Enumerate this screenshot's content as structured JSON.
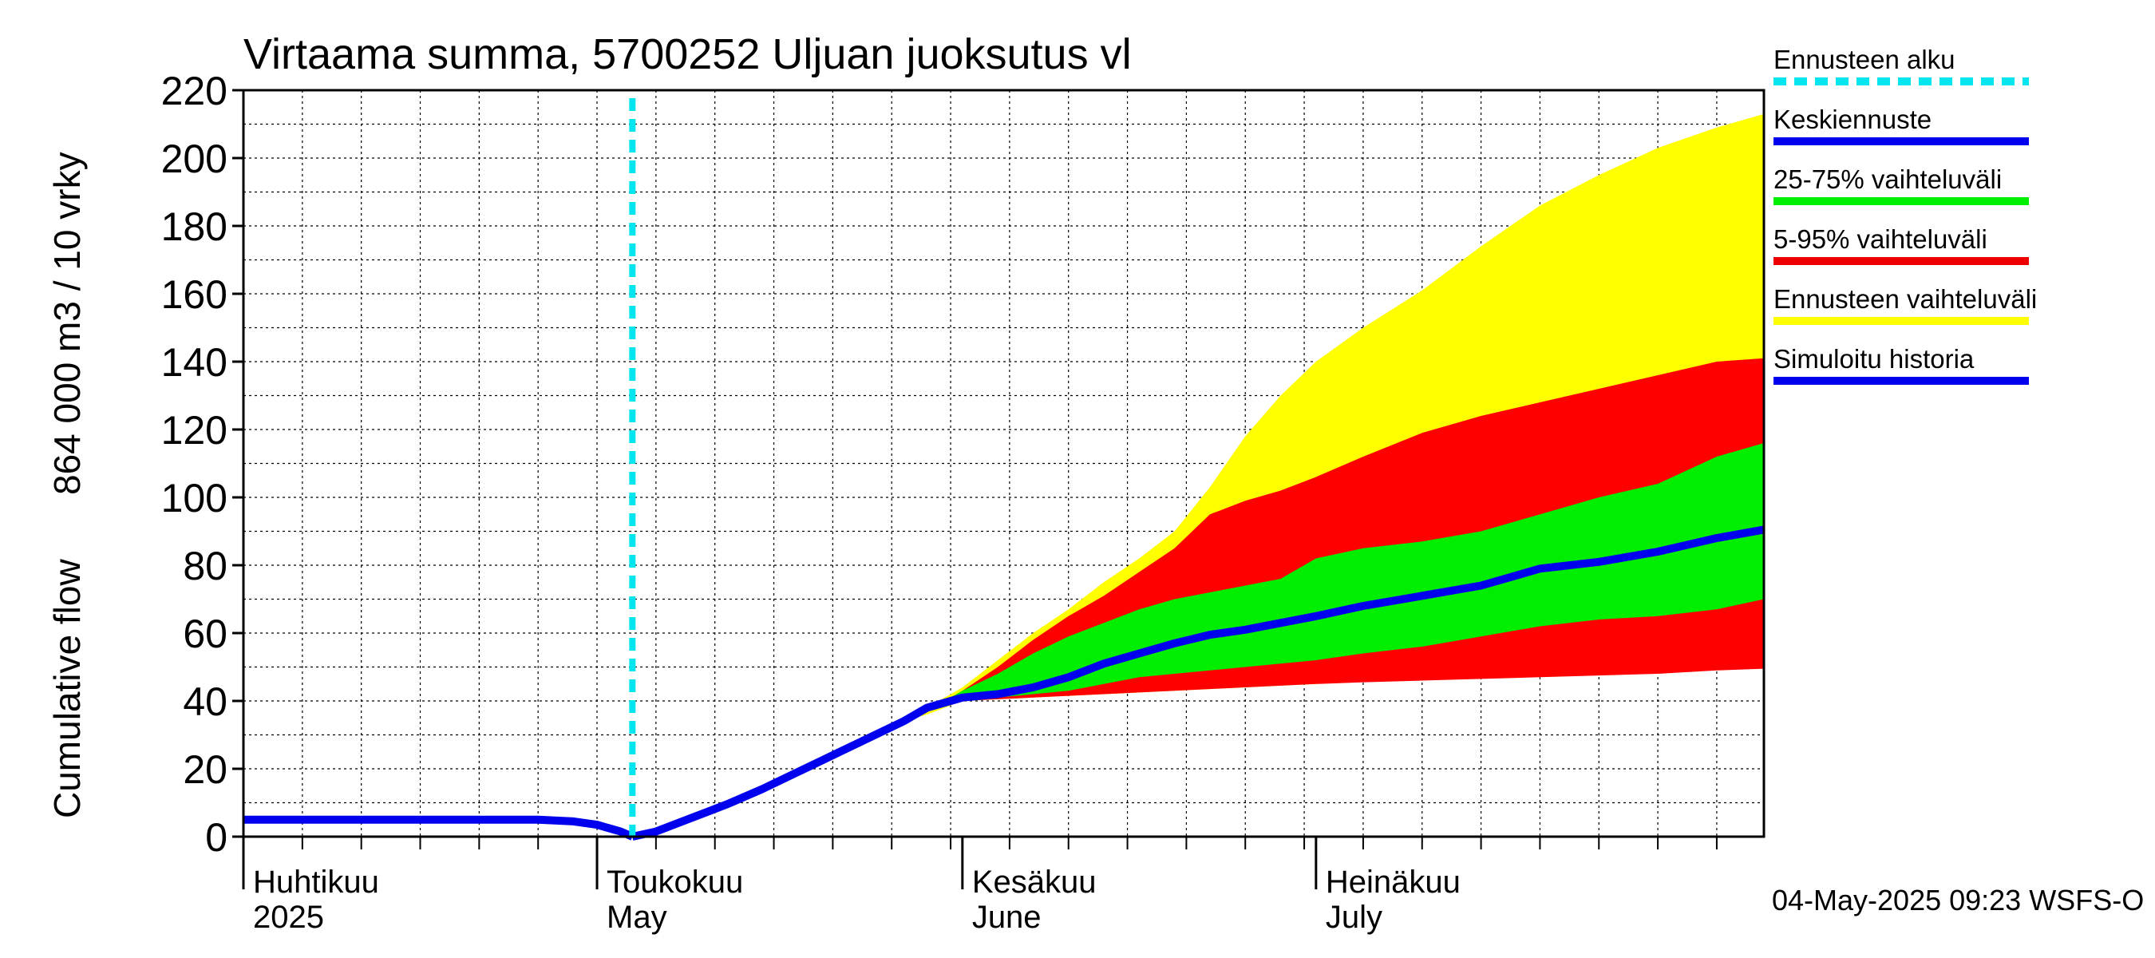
{
  "chart_data": {
    "type": "area",
    "title": "Virtaama summa, 5700252 Uljuan juoksutus vl",
    "ylabel_line1": "864 000 m3 / 10 vrky",
    "ylabel_line2": "Cumulative flow",
    "ylim": [
      0,
      220
    ],
    "xlim_days": [
      0,
      129
    ],
    "yticks": [
      0,
      20,
      40,
      60,
      80,
      100,
      120,
      140,
      160,
      180,
      200,
      220
    ],
    "grid": true,
    "forecast_start_day": 33,
    "months": [
      {
        "fi": "Huhtikuu",
        "en": "2025",
        "day": 0
      },
      {
        "fi": "Toukokuu",
        "en": "May",
        "day": 30
      },
      {
        "fi": "Kesäkuu",
        "en": "June",
        "day": 61
      },
      {
        "fi": "Heinäkuu",
        "en": "July",
        "day": 91
      }
    ],
    "legend": {
      "position": "right",
      "entries": [
        {
          "label": "Ennusteen alku",
          "color": "#00e5ee",
          "style": "dashed"
        },
        {
          "label": "Keskiennuste",
          "color": "#0000ee",
          "style": "line"
        },
        {
          "label": "25-75% vaihteluväli",
          "color": "#00ee00",
          "style": "line"
        },
        {
          "label": "5-95% vaihteluväli",
          "color": "#ee0000",
          "style": "line"
        },
        {
          "label": "Ennusteen vaihteluväli",
          "color": "#ffff00",
          "style": "line"
        },
        {
          "label": "Simuloitu historia",
          "color": "#0000ee",
          "style": "line"
        }
      ]
    },
    "footer": "04-May-2025 09:23 WSFS-O",
    "colors": {
      "yellow": "#ffff00",
      "red": "#ff0000",
      "green": "#00ee00",
      "blue": "#0000ee",
      "cyan": "#00e5ee"
    },
    "x": [
      0,
      10,
      20,
      25,
      28,
      30,
      32,
      33,
      35,
      38,
      41,
      44,
      47,
      50,
      53,
      56,
      58,
      61,
      64,
      67,
      70,
      73,
      76,
      79,
      82,
      85,
      88,
      91,
      95,
      100,
      105,
      110,
      115,
      120,
      125,
      129
    ],
    "series": [
      {
        "name": "Ennusteen vaihteluväli upper",
        "values": [
          null,
          null,
          null,
          null,
          null,
          null,
          null,
          0,
          1.5,
          5.5,
          9.5,
          14,
          19,
          24,
          29,
          34,
          38,
          44,
          52,
          60,
          67,
          75,
          82,
          90,
          103,
          118,
          130,
          140,
          150,
          161,
          174,
          186,
          195,
          203,
          209,
          213
        ]
      },
      {
        "name": "Ennusteen vaihteluväli lower",
        "values": [
          null,
          null,
          null,
          null,
          null,
          null,
          null,
          0,
          1.5,
          5.5,
          9.5,
          14,
          19,
          24,
          29,
          34,
          36,
          40,
          40.5,
          41,
          41.5,
          42,
          42.5,
          43,
          43.5,
          44,
          44.5,
          45,
          46,
          47,
          48,
          49,
          50,
          51,
          52,
          52.5
        ]
      },
      {
        "name": "5-95% upper",
        "values": [
          null,
          null,
          null,
          null,
          null,
          null,
          null,
          0,
          1.5,
          5.5,
          9.5,
          14,
          19,
          24,
          29,
          34,
          37,
          43,
          50,
          58,
          65,
          71,
          78,
          85,
          95,
          99,
          102,
          106,
          112,
          119,
          124,
          128,
          132,
          136,
          140,
          141
        ]
      },
      {
        "name": "5-95% lower",
        "values": [
          null,
          null,
          null,
          null,
          null,
          null,
          null,
          0,
          1.5,
          5.5,
          9.5,
          14,
          19,
          24,
          29,
          34,
          37,
          40,
          40.5,
          41,
          41.5,
          42,
          42.5,
          43,
          43.5,
          44,
          44.5,
          45,
          45.5,
          46,
          46.5,
          47,
          47.5,
          48,
          49,
          49.5
        ]
      },
      {
        "name": "25-75% upper",
        "values": [
          null,
          null,
          null,
          null,
          null,
          null,
          null,
          0,
          1.5,
          5.5,
          9.5,
          14,
          19,
          24,
          29,
          34,
          37,
          43,
          48,
          54,
          59,
          63,
          67,
          70,
          72,
          74,
          76,
          82,
          85,
          87,
          90,
          95,
          100,
          104,
          112,
          116
        ]
      },
      {
        "name": "25-75% lower",
        "values": [
          null,
          null,
          null,
          null,
          null,
          null,
          null,
          0,
          1.5,
          5.5,
          9.5,
          14,
          19,
          24,
          29,
          34,
          37,
          40,
          41,
          42,
          43,
          45,
          47,
          48,
          49,
          50,
          51,
          52,
          54,
          56,
          59,
          62,
          64,
          65,
          67,
          70
        ]
      },
      {
        "name": "Keskiennuste",
        "values": [
          null,
          null,
          null,
          null,
          null,
          null,
          null,
          0,
          1.5,
          5.5,
          9.5,
          14,
          19,
          24,
          29,
          34,
          38,
          41,
          42,
          44,
          47,
          51,
          54,
          57,
          59.5,
          61,
          63,
          65,
          68,
          71,
          74,
          79,
          81,
          84,
          88,
          90.5
        ]
      },
      {
        "name": "Simuloitu historia",
        "values": [
          5,
          5,
          5,
          5,
          4.5,
          3.5,
          1.5,
          0,
          null,
          null,
          null,
          null,
          null,
          null,
          null,
          null,
          null,
          null,
          null,
          null,
          null,
          null,
          null,
          null,
          null,
          null,
          null,
          null,
          null,
          null,
          null,
          null,
          null,
          null,
          null,
          null
        ]
      }
    ]
  }
}
